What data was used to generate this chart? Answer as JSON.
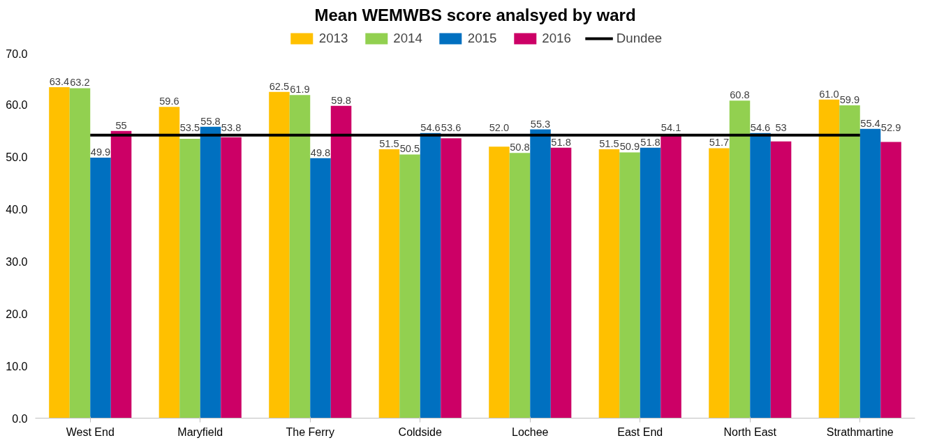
{
  "chart_data": {
    "type": "bar",
    "title": "Mean WEMWBS score analsyed by ward",
    "categories": [
      "West End",
      "Maryfield",
      "The Ferry",
      "Coldside",
      "Lochee",
      "East End",
      "North East",
      "Strathmartine"
    ],
    "ylim": [
      0,
      70
    ],
    "yticks": [
      {
        "value": 0,
        "label": "0.0"
      },
      {
        "value": 10,
        "label": "10.0"
      },
      {
        "value": 20,
        "label": "20.0"
      },
      {
        "value": 30,
        "label": "30.0"
      },
      {
        "value": 40,
        "label": "40.0"
      },
      {
        "value": 50,
        "label": "50.0"
      },
      {
        "value": 60,
        "label": "60.0"
      },
      {
        "value": 70,
        "label": "70.0"
      }
    ],
    "legend": "top",
    "series": [
      {
        "name": "2013",
        "color": "#ffc000",
        "values": [
          63.4,
          59.6,
          62.5,
          51.5,
          52.0,
          51.5,
          51.7,
          61.0
        ],
        "value_labels": [
          "63.4",
          "59.6",
          "62.5",
          "51.5",
          "52.0",
          "51.5",
          "51.7",
          "61.0"
        ]
      },
      {
        "name": "2014",
        "color": "#92d050",
        "values": [
          63.2,
          53.5,
          61.9,
          50.5,
          50.8,
          50.9,
          60.8,
          59.9
        ],
        "value_labels": [
          "63.2",
          "53.5",
          "61.9",
          "50.5",
          "50.8",
          "50.9",
          "60.8",
          "59.9"
        ]
      },
      {
        "name": "2015",
        "color": "#0070c0",
        "values": [
          49.9,
          55.8,
          49.8,
          54.6,
          55.3,
          51.8,
          54.6,
          55.4
        ],
        "value_labels": [
          "49.9",
          "55.8",
          "49.8",
          "54.6",
          "55.3",
          "51.8",
          "54.6",
          "55.4"
        ]
      },
      {
        "name": "2016",
        "color": "#cc0066",
        "values": [
          55,
          53.8,
          59.8,
          53.6,
          51.8,
          54.1,
          53,
          52.9
        ],
        "value_labels": [
          "55",
          "53.8",
          "59.8",
          "53.6",
          "51.8",
          "54.1",
          "53",
          "52.9"
        ]
      },
      {
        "name": "Dundee",
        "type": "line",
        "color": "#000000",
        "values": [
          54.2,
          54.2,
          54.2,
          54.2,
          54.2,
          54.2,
          54.2,
          54.2
        ]
      }
    ]
  }
}
